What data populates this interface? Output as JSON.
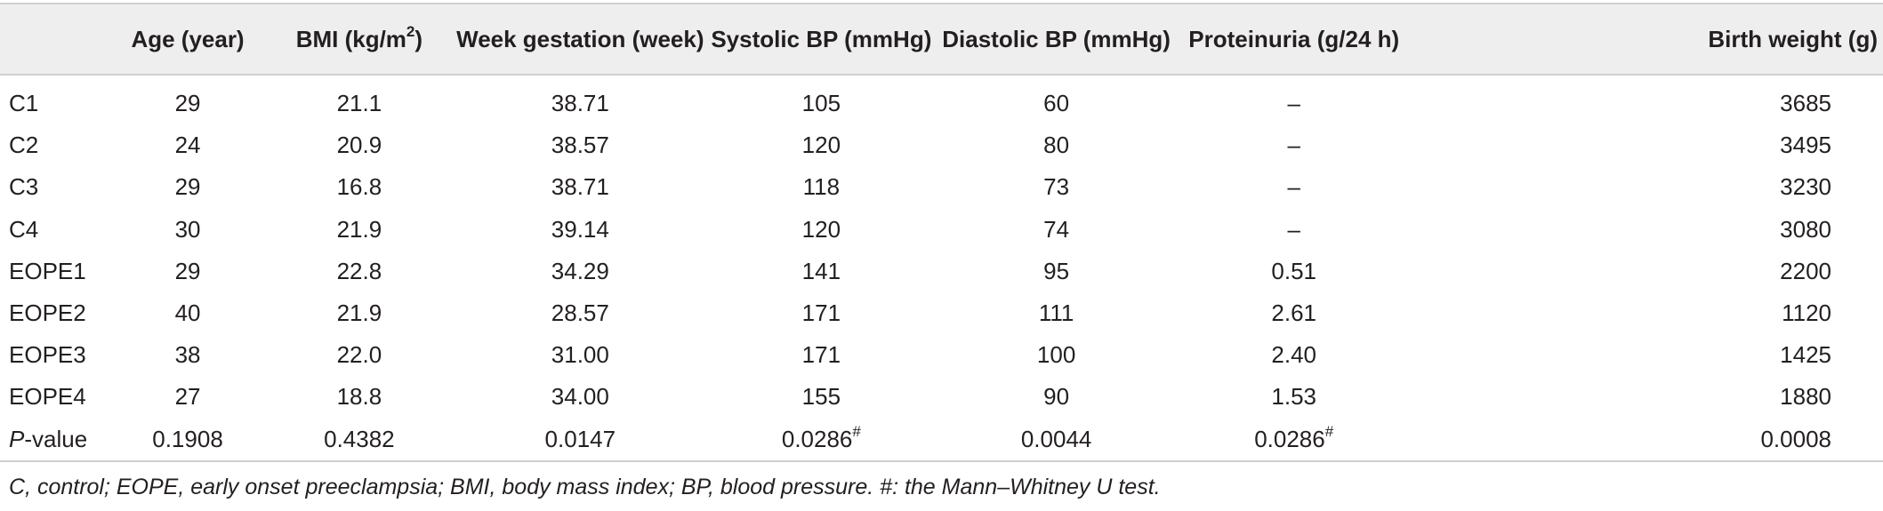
{
  "table": {
    "headers": {
      "label": "",
      "age": "Age (year)",
      "bmi_prefix": "BMI (kg/m",
      "bmi_sup": "2",
      "bmi_suffix": ")",
      "week": "Week gestation (week)",
      "systolic": "Systolic BP (mmHg)",
      "diastolic": "Diastolic BP (mmHg)",
      "proteinuria": "Proteinuria (g/24 h)",
      "birth_weight": "Birth weight (g)"
    },
    "rows": [
      {
        "label": "C1",
        "age": "29",
        "bmi": "21.1",
        "week": "38.71",
        "systolic": "105",
        "diastolic": "60",
        "proteinuria": "–",
        "birth_weight": "3685"
      },
      {
        "label": "C2",
        "age": "24",
        "bmi": "20.9",
        "week": "38.57",
        "systolic": "120",
        "diastolic": "80",
        "proteinuria": "–",
        "birth_weight": "3495"
      },
      {
        "label": "C3",
        "age": "29",
        "bmi": "16.8",
        "week": "38.71",
        "systolic": "118",
        "diastolic": "73",
        "proteinuria": "–",
        "birth_weight": "3230"
      },
      {
        "label": "C4",
        "age": "30",
        "bmi": "21.9",
        "week": "39.14",
        "systolic": "120",
        "diastolic": "74",
        "proteinuria": "–",
        "birth_weight": "3080"
      },
      {
        "label": "EOPE1",
        "age": "29",
        "bmi": "22.8",
        "week": "34.29",
        "systolic": "141",
        "diastolic": "95",
        "proteinuria": "0.51",
        "birth_weight": "2200"
      },
      {
        "label": "EOPE2",
        "age": "40",
        "bmi": "21.9",
        "week": "28.57",
        "systolic": "171",
        "diastolic": "111",
        "proteinuria": "2.61",
        "birth_weight": "1120"
      },
      {
        "label": "EOPE3",
        "age": "38",
        "bmi": "22.0",
        "week": "31.00",
        "systolic": "171",
        "diastolic": "100",
        "proteinuria": "2.40",
        "birth_weight": "1425"
      },
      {
        "label": "EOPE4",
        "age": "27",
        "bmi": "18.8",
        "week": "34.00",
        "systolic": "155",
        "diastolic": "90",
        "proteinuria": "1.53",
        "birth_weight": "1880"
      }
    ],
    "pvalue_row": {
      "label_italic": "P",
      "label_rest": "-value",
      "age": "0.1908",
      "bmi": "0.4382",
      "week": "0.0147",
      "systolic": "0.0286",
      "systolic_mark": "#",
      "diastolic": "0.0044",
      "proteinuria": "0.0286",
      "proteinuria_mark": "#",
      "birth_weight": "0.0008"
    }
  },
  "footnote": "C, control; EOPE, early onset preeclampsia; BMI, body mass index; BP, blood pressure. #: the Mann–Whitney U test."
}
